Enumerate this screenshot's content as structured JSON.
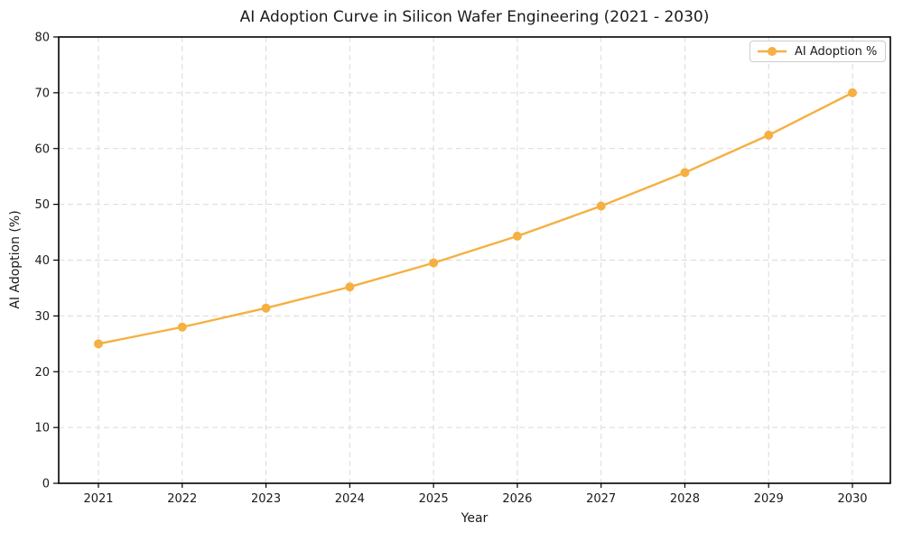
{
  "figure": {
    "background": "#ffffff",
    "text_color": "#1a1a1a"
  },
  "chart_data": {
    "type": "line",
    "title": "AI Adoption Curve in Silicon Wafer Engineering (2021 - 2030)",
    "xlabel": "Year",
    "ylabel": "AI Adoption (%)",
    "categories": [
      "2021",
      "2022",
      "2023",
      "2024",
      "2025",
      "2026",
      "2027",
      "2028",
      "2029",
      "2030"
    ],
    "series": [
      {
        "name": "AI Adoption %",
        "values": [
          25.0,
          28.0,
          31.4,
          35.2,
          39.5,
          44.3,
          49.7,
          55.7,
          62.4,
          70.0
        ],
        "color": "#F5B041",
        "marker": "circle"
      }
    ],
    "ylim": [
      0,
      80
    ],
    "ytick_step": 10,
    "grid": true,
    "grid_style": "dashed",
    "grid_color": "#dadada",
    "frame_color": "#000000",
    "legend_position": "upper right"
  }
}
